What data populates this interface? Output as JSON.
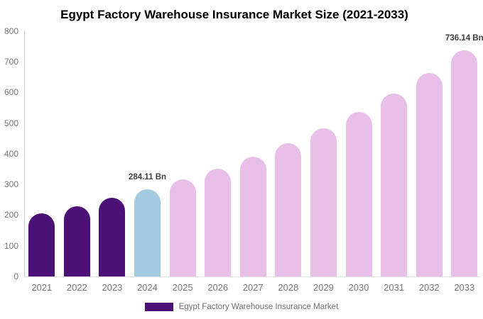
{
  "title": "Egypt Factory Warehouse Insurance Market Size (2021-2033)",
  "chart_data": {
    "type": "bar",
    "title": "Egypt Factory Warehouse Insurance Market Size (2021-2033)",
    "categories": [
      "2021",
      "2022",
      "2023",
      "2024",
      "2025",
      "2026",
      "2027",
      "2028",
      "2029",
      "2030",
      "2031",
      "2032",
      "2033"
    ],
    "values": [
      206.8,
      229.9,
      255.6,
      284.11,
      315.8,
      351.1,
      390.3,
      433.9,
      482.3,
      536.2,
      596.1,
      662.5,
      736.14
    ],
    "unit": "Bn",
    "xlabel": "",
    "ylabel": "",
    "ylim": [
      0,
      800
    ],
    "yticks": [
      0,
      100,
      200,
      300,
      400,
      500,
      600,
      700,
      800
    ],
    "grid": false,
    "legend_label": "Egypt Factory Warehouse Insurance Market",
    "legend_position": "bottom",
    "annotations": [
      {
        "category": "2024",
        "text": "284.11 Bn"
      },
      {
        "category": "2033",
        "text": "736.14 Bn"
      }
    ],
    "bar_colors": [
      "#4B1177",
      "#4B1177",
      "#4B1177",
      "#A4CBE0",
      "#E7BFE9",
      "#E7BFE9",
      "#E7BFE9",
      "#E7BFE9",
      "#E7BFE9",
      "#E7BFE9",
      "#E7BFE9",
      "#E7BFE9",
      "#E7BFE9"
    ],
    "colors": {
      "historical_bars": "#4B1177",
      "current_year_bar": "#A4CBE0",
      "forecast_bars": "#E7BFE9",
      "legend_swatch": "#4B1177",
      "title_text": "#000000",
      "axis_text": "#757575",
      "annotation_text": "#3D3D3D",
      "axis_line": "#CCCCCC"
    }
  }
}
